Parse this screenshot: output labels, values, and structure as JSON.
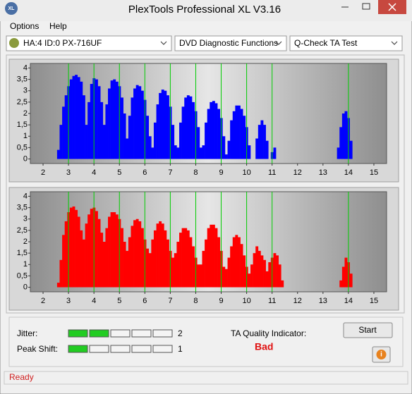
{
  "window": {
    "title": "PlexTools Professional XL V3.16",
    "icon": "XL"
  },
  "menu": [
    "Options",
    "Help"
  ],
  "toolbar": {
    "drive": "HA:4 ID:0  PX-716UF",
    "function": "DVD Diagnostic Functions",
    "test": "Q-Check TA Test"
  },
  "chart_data": [
    {
      "type": "bar",
      "x": [
        2.5,
        2.6,
        2.7,
        2.8,
        2.9,
        3.0,
        3.1,
        3.2,
        3.3,
        3.4,
        3.5,
        3.6,
        3.7,
        3.8,
        3.9,
        4.0,
        4.1,
        4.2,
        4.3,
        4.4,
        4.5,
        4.6,
        4.7,
        4.8,
        4.9,
        5.0,
        5.1,
        5.2,
        5.3,
        5.4,
        5.5,
        5.6,
        5.7,
        5.8,
        5.9,
        6.0,
        6.1,
        6.2,
        6.3,
        6.4,
        6.5,
        6.6,
        6.7,
        6.8,
        6.9,
        7.0,
        7.1,
        7.2,
        7.3,
        7.4,
        7.5,
        7.6,
        7.7,
        7.8,
        7.9,
        8.0,
        8.1,
        8.2,
        8.3,
        8.4,
        8.5,
        8.6,
        8.7,
        8.8,
        8.9,
        9.0,
        9.1,
        9.2,
        9.3,
        9.4,
        9.5,
        9.6,
        9.7,
        9.8,
        9.9,
        10.0,
        10.1,
        10.2,
        10.3,
        10.4,
        10.5,
        10.6,
        10.7,
        10.8,
        10.9,
        11.0,
        11.1,
        11.2,
        11.3,
        11.4,
        11.5,
        11.6,
        11.7,
        11.8,
        11.9,
        12.0,
        12.1,
        12.2,
        12.3,
        12.4,
        12.5,
        12.6,
        12.7,
        12.8,
        12.9,
        13.0,
        13.1,
        13.2,
        13.3,
        13.4,
        13.5,
        13.6,
        13.7,
        13.8,
        13.9,
        14.0,
        14.1,
        14.2,
        14.3,
        14.4
      ],
      "series": [
        {
          "color": "#0000ff",
          "values": [
            0,
            0.4,
            1.5,
            2.3,
            2.8,
            3.2,
            3.5,
            3.65,
            3.7,
            3.6,
            3.4,
            2.8,
            1.5,
            2.5,
            3.3,
            3.55,
            3.5,
            3.2,
            2.5,
            1.5,
            2.4,
            3.1,
            3.45,
            3.5,
            3.4,
            3.2,
            2.7,
            2.0,
            0.9,
            1.9,
            2.7,
            3.1,
            3.25,
            3.2,
            3.0,
            2.6,
            1.9,
            1.0,
            0.5,
            1.6,
            2.4,
            2.9,
            3.05,
            3.0,
            2.8,
            2.3,
            1.5,
            0.6,
            0.5,
            1.6,
            2.3,
            2.7,
            2.8,
            2.75,
            2.5,
            2.1,
            1.4,
            0.5,
            0.6,
            1.6,
            2.2,
            2.5,
            2.55,
            2.45,
            2.2,
            1.8,
            1.0,
            0.2,
            0.8,
            1.7,
            2.1,
            2.35,
            2.35,
            2.2,
            1.9,
            1.4,
            0.6,
            0,
            0,
            0.9,
            1.5,
            1.7,
            1.5,
            0.8,
            0,
            0.3,
            0.5,
            0,
            0,
            0,
            0,
            0,
            0,
            0,
            0,
            0,
            0,
            0,
            0,
            0,
            0,
            0,
            0,
            0,
            0,
            0,
            0,
            0,
            0,
            0,
            0,
            0.5,
            1.4,
            2.0,
            2.1,
            1.8,
            0.8,
            0,
            0,
            0
          ]
        }
      ],
      "xlim": [
        1.5,
        15.5
      ],
      "ylim": [
        -0.2,
        4.2
      ],
      "xticks": [
        2,
        3,
        4,
        5,
        6,
        7,
        8,
        9,
        10,
        11,
        12,
        13,
        14,
        15
      ],
      "yticks": [
        0,
        {
          "value": 0.5,
          "label": "0,5"
        },
        1,
        {
          "value": 1.5,
          "label": "1,5"
        },
        2,
        {
          "value": 2.5,
          "label": "2,5"
        },
        3,
        {
          "value": 3.5,
          "label": "3,5"
        },
        4
      ],
      "reference_lines": [
        3,
        4,
        5,
        6,
        7,
        8,
        9,
        10,
        11,
        14
      ],
      "reference_color": "#00cc00"
    },
    {
      "type": "bar",
      "x": [
        2.5,
        2.6,
        2.7,
        2.8,
        2.9,
        3.0,
        3.1,
        3.2,
        3.3,
        3.4,
        3.5,
        3.6,
        3.7,
        3.8,
        3.9,
        4.0,
        4.1,
        4.2,
        4.3,
        4.4,
        4.5,
        4.6,
        4.7,
        4.8,
        4.9,
        5.0,
        5.1,
        5.2,
        5.3,
        5.4,
        5.5,
        5.6,
        5.7,
        5.8,
        5.9,
        6.0,
        6.1,
        6.2,
        6.3,
        6.4,
        6.5,
        6.6,
        6.7,
        6.8,
        6.9,
        7.0,
        7.1,
        7.2,
        7.3,
        7.4,
        7.5,
        7.6,
        7.7,
        7.8,
        7.9,
        8.0,
        8.1,
        8.2,
        8.3,
        8.4,
        8.5,
        8.6,
        8.7,
        8.8,
        8.9,
        9.0,
        9.1,
        9.2,
        9.3,
        9.4,
        9.5,
        9.6,
        9.7,
        9.8,
        9.9,
        10.0,
        10.1,
        10.2,
        10.3,
        10.4,
        10.5,
        10.6,
        10.7,
        10.8,
        10.9,
        11.0,
        11.1,
        11.2,
        11.3,
        11.4,
        11.5,
        11.6,
        11.7,
        11.8,
        11.9,
        12.0,
        12.1,
        12.2,
        12.3,
        12.4,
        12.5,
        12.6,
        12.7,
        12.8,
        12.9,
        13.0,
        13.1,
        13.2,
        13.3,
        13.4,
        13.5,
        13.6,
        13.7,
        13.8,
        13.9,
        14.0,
        14.1,
        14.2,
        14.3,
        14.4
      ],
      "series": [
        {
          "color": "#ff0000",
          "values": [
            0,
            0.2,
            1.2,
            2.3,
            2.9,
            3.3,
            3.5,
            3.55,
            3.4,
            3.1,
            2.5,
            2.1,
            2.8,
            3.2,
            3.45,
            3.5,
            3.35,
            3.0,
            2.4,
            2.0,
            2.6,
            3.1,
            3.3,
            3.3,
            3.2,
            3.0,
            2.6,
            2.0,
            1.6,
            2.2,
            2.7,
            2.95,
            3.0,
            2.9,
            2.6,
            2.1,
            1.7,
            1.5,
            2.1,
            2.5,
            2.8,
            2.9,
            2.8,
            2.5,
            2.1,
            1.6,
            1.3,
            1.5,
            2.0,
            2.4,
            2.6,
            2.6,
            2.5,
            2.2,
            1.8,
            1.3,
            1.0,
            1.0,
            1.6,
            2.1,
            2.6,
            2.75,
            2.75,
            2.6,
            2.2,
            1.6,
            0.9,
            0.8,
            1.3,
            1.8,
            2.2,
            2.3,
            2.2,
            1.9,
            1.4,
            0.9,
            0.6,
            1.0,
            1.5,
            1.8,
            1.6,
            1.4,
            1.2,
            0.7,
            1.1,
            1.3,
            1.5,
            1.4,
            1.0,
            0.3,
            0,
            0,
            0,
            0,
            0,
            0,
            0,
            0,
            0,
            0,
            0,
            0,
            0,
            0,
            0,
            0,
            0,
            0,
            0,
            0,
            0,
            0,
            0.3,
            0.9,
            1.3,
            1.1,
            0.6,
            0,
            0,
            0
          ]
        }
      ],
      "xlim": [
        1.5,
        15.5
      ],
      "ylim": [
        -0.2,
        4.2
      ],
      "xticks": [
        2,
        3,
        4,
        5,
        6,
        7,
        8,
        9,
        10,
        11,
        12,
        13,
        14,
        15
      ],
      "yticks": [
        0,
        {
          "value": 0.5,
          "label": "0,5"
        },
        1,
        {
          "value": 1.5,
          "label": "1,5"
        },
        2,
        {
          "value": 2.5,
          "label": "2,5"
        },
        3,
        {
          "value": 3.5,
          "label": "3,5"
        },
        4
      ],
      "reference_lines": [
        3,
        4,
        5,
        6,
        7,
        8,
        9,
        10,
        11,
        14
      ],
      "reference_color": "#00cc00"
    }
  ],
  "results": {
    "jitter_label": "Jitter:",
    "jitter_score": 2,
    "peak_shift_label": "Peak Shift:",
    "peak_shift_score": 1,
    "ta_label": "TA Quality Indicator:",
    "ta_value": "Bad",
    "start": "Start",
    "info": "i"
  },
  "status": "Ready"
}
